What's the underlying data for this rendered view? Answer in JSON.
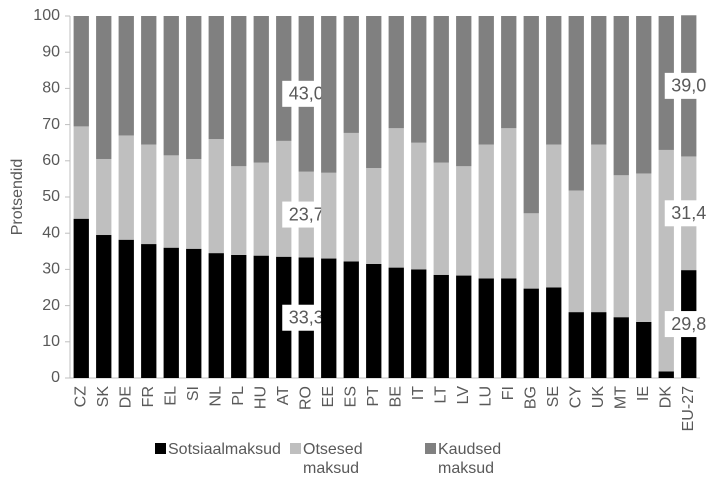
{
  "chart_data": {
    "type": "stacked_bar",
    "y_axis_label": "Protsendid",
    "categories": [
      "CZ",
      "SK",
      "DE",
      "FR",
      "EL",
      "SI",
      "NL",
      "PL",
      "HU",
      "AT",
      "RO",
      "EE",
      "ES",
      "PT",
      "BE",
      "IT",
      "LT",
      "LV",
      "LU",
      "FI",
      "BG",
      "SE",
      "CY",
      "UK",
      "MT",
      "IE",
      "DK",
      "EU-27"
    ],
    "series": [
      {
        "name": "Sotsiaalmaksud",
        "color": "#000000",
        "values": [
          44,
          39.5,
          38.2,
          37,
          36,
          35.7,
          34.5,
          34,
          33.8,
          33.5,
          33.3,
          33,
          32.2,
          31.5,
          30.5,
          30,
          28.5,
          28.3,
          27.5,
          27.5,
          24.7,
          25,
          18.2,
          18.2,
          16.8,
          15.5,
          1.8,
          29.8
        ],
        "value_labels": [
          null,
          null,
          null,
          null,
          null,
          null,
          null,
          null,
          null,
          null,
          "33,3",
          null,
          null,
          null,
          null,
          null,
          null,
          null,
          null,
          null,
          null,
          null,
          null,
          null,
          null,
          null,
          null,
          "29,8"
        ]
      },
      {
        "name": "Otsesed maksud",
        "color": "#bfbfbf",
        "values": [
          25.5,
          21,
          28.8,
          27.5,
          25.5,
          24.8,
          31.5,
          24.5,
          25.7,
          32,
          23.7,
          23.7,
          35.5,
          26.5,
          38.5,
          35,
          31,
          30.2,
          37,
          41.5,
          20.8,
          39.5,
          33.6,
          46.3,
          39.2,
          41,
          61.2,
          31.4
        ],
        "value_labels": [
          null,
          null,
          null,
          null,
          null,
          null,
          null,
          null,
          null,
          null,
          "23,7",
          null,
          null,
          null,
          null,
          null,
          null,
          null,
          null,
          null,
          null,
          null,
          null,
          null,
          null,
          null,
          null,
          "31,4"
        ]
      },
      {
        "name": "Kaudsed maksud",
        "color": "#808080",
        "values": [
          30.5,
          39.5,
          33,
          35.5,
          38.5,
          39.5,
          34,
          41.5,
          40.5,
          34.5,
          43,
          43.3,
          32.3,
          42,
          31,
          35,
          40.5,
          41.5,
          35.5,
          31,
          54.5,
          35.5,
          48.2,
          35.5,
          44,
          43.5,
          37,
          39
        ],
        "value_labels": [
          null,
          null,
          null,
          null,
          null,
          null,
          null,
          null,
          null,
          null,
          "43,0",
          null,
          null,
          null,
          null,
          null,
          null,
          null,
          null,
          null,
          null,
          null,
          null,
          null,
          null,
          null,
          null,
          "39,0"
        ]
      }
    ],
    "ylim": [
      0,
      100
    ],
    "yticks": [
      0,
      10,
      20,
      30,
      40,
      50,
      60,
      70,
      80,
      90,
      100
    ],
    "grid": false,
    "legend": "bottom"
  }
}
